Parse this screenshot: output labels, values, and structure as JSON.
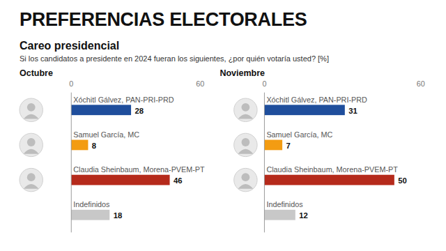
{
  "header": {
    "title": "PREFERENCIAS ELECTORALES",
    "subtitle": "Careo presidencial",
    "question": "Si los candidatos a presidente en 2024 fueran los siguientes, ¿por quién votaría usted?  [%]"
  },
  "chart_data": [
    {
      "type": "bar",
      "title": "Octubre",
      "orientation": "horizontal",
      "data_labels": true,
      "grid": false,
      "categories": [
        "Xóchitl Gálvez, PAN-PRI-PRD",
        "Samuel García, MC",
        "Claudia Sheinbaum, Morena-PVEM-PT",
        "Indefinidos"
      ],
      "values": [
        28,
        8,
        46,
        18
      ],
      "colors": [
        "#1f4e9c",
        "#f39c12",
        "#b52a1b",
        "#c8c8c8"
      ],
      "xlim": [
        0,
        60
      ],
      "xticks": [
        0,
        60
      ]
    },
    {
      "type": "bar",
      "title": "Noviembre",
      "orientation": "horizontal",
      "data_labels": true,
      "grid": false,
      "categories": [
        "Xóchitl Gálvez, PAN-PRI-PRD",
        "Samuel García, MC",
        "Claudia Sheinbaum, Morena-PVEM-PT",
        "Indefinidos"
      ],
      "values": [
        31,
        7,
        50,
        12
      ],
      "colors": [
        "#1f4e9c",
        "#f39c12",
        "#b52a1b",
        "#c8c8c8"
      ],
      "xlim": [
        0,
        60
      ],
      "xticks": [
        0,
        60
      ]
    }
  ]
}
